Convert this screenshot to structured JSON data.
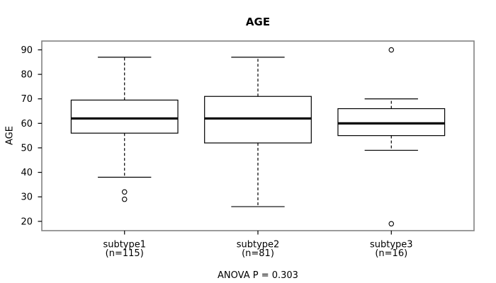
{
  "chart_data": {
    "type": "boxplot",
    "title": "AGE",
    "xlabel": "",
    "ylabel": "AGE",
    "annotation": "ANOVA P = 0.303",
    "y_ticks": [
      20,
      30,
      40,
      50,
      60,
      70,
      80,
      90
    ],
    "ylim": [
      16.2,
      93.6
    ],
    "xlim": [
      0.38,
      3.62
    ],
    "box_width": 0.8,
    "cap_width": 0.4,
    "grid": false,
    "categories": [
      "subtype1",
      "subtype2",
      "subtype3"
    ],
    "groups": [
      {
        "label": "subtype1",
        "n_label": "(n=115)",
        "n": 115,
        "whisker_low": 38,
        "q1": 56,
        "median": 62,
        "q3": 69.5,
        "whisker_high": 87,
        "outliers": [
          32,
          29
        ]
      },
      {
        "label": "subtype2",
        "n_label": "(n=81)",
        "n": 81,
        "whisker_low": 26,
        "q1": 52,
        "median": 62,
        "q3": 71,
        "whisker_high": 87,
        "outliers": []
      },
      {
        "label": "subtype3",
        "n_label": "(n=16)",
        "n": 16,
        "whisker_low": 49,
        "q1": 55,
        "median": 60,
        "q3": 66,
        "whisker_high": 70,
        "outliers": [
          90,
          19
        ]
      }
    ]
  },
  "colors": {
    "frame": "#828282",
    "line": "#000000",
    "text": "#000000",
    "background": "#ffffff"
  }
}
